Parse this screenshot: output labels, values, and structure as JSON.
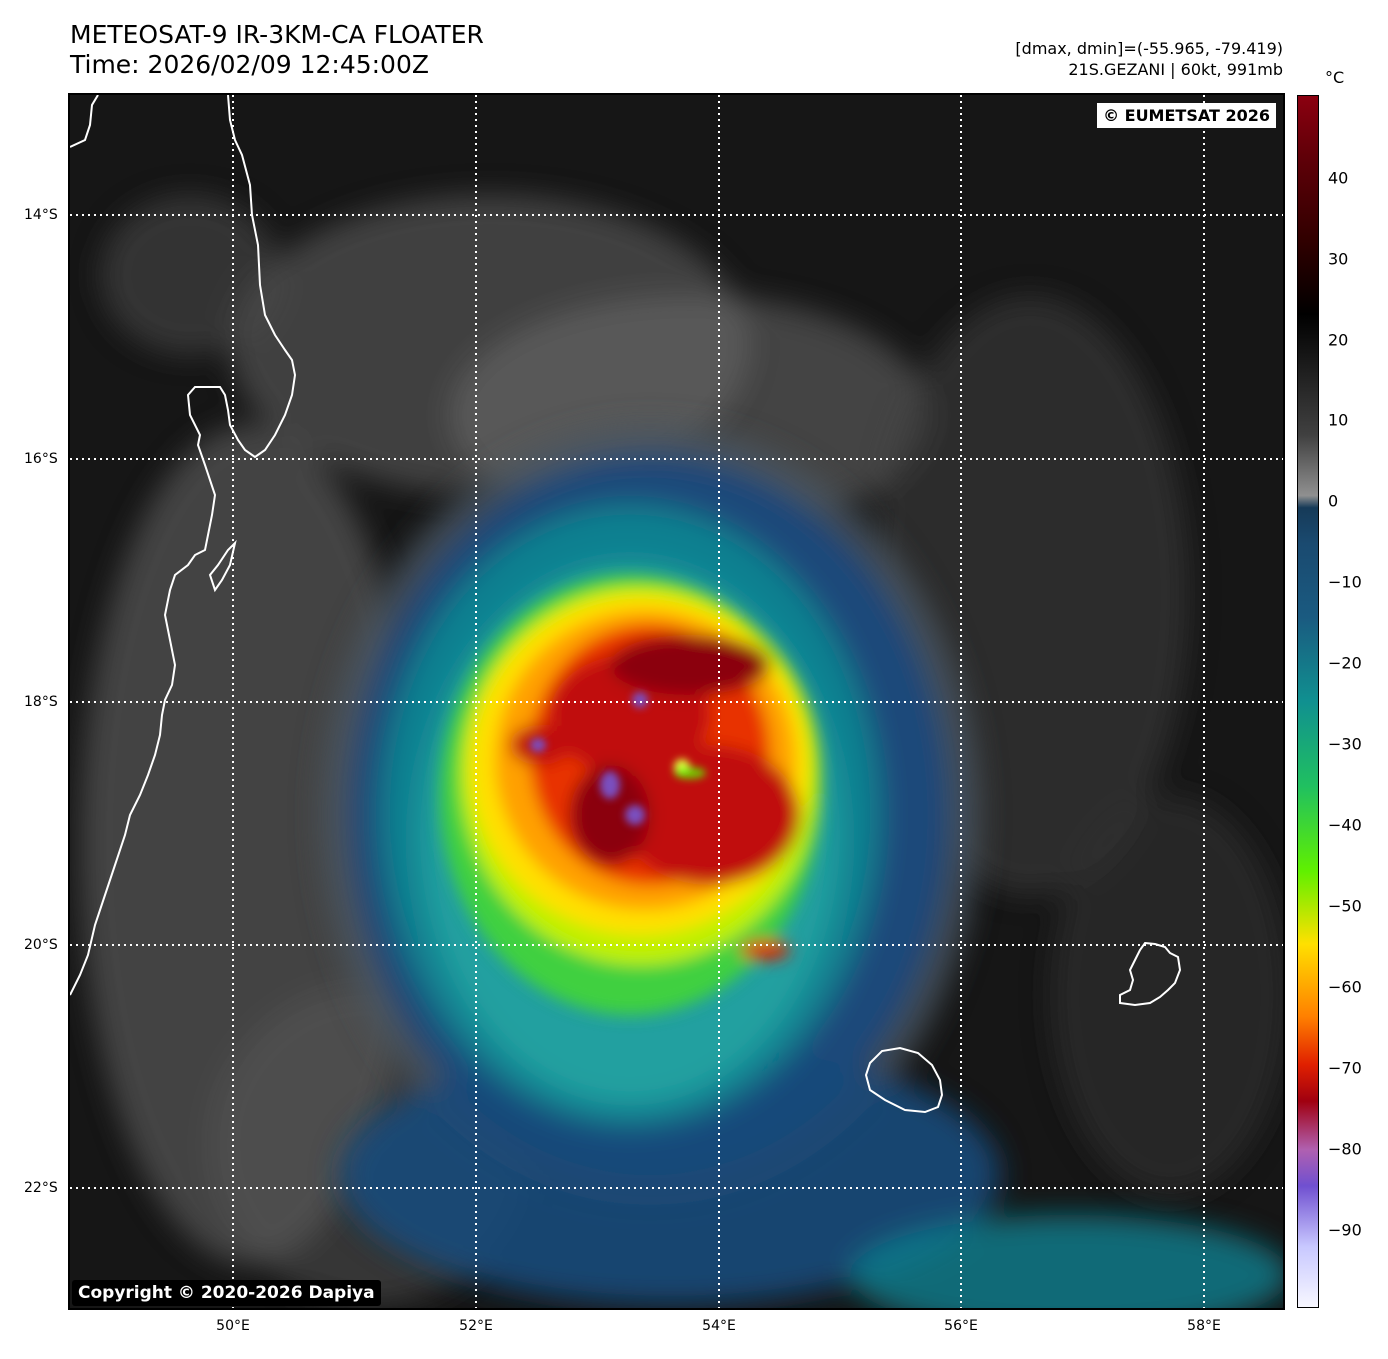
{
  "header": {
    "title_line1": "METEOSAT-9 IR-3KM-CA FLOATER",
    "title_line2": "Time: 2026/02/09 12:45:00Z",
    "range_text": "[dmax, dmin]=(-55.965, -79.419)",
    "storm_text": "21S.GEZANI | 60kt, 991mb"
  },
  "map": {
    "credit_top": "© EUMETSAT 2026",
    "credit_bottom": "Copyright © 2020-2026 Dapiya",
    "lat_labels": [
      "14°S",
      "16°S",
      "18°S",
      "20°S",
      "22°S"
    ],
    "lon_labels": [
      "50°E",
      "52°E",
      "54°E",
      "56°E",
      "58°E"
    ],
    "coastline_color": "#ffffff",
    "gridline_style": "dotted white"
  },
  "colorbar": {
    "unit": "°C",
    "ticks": [
      "40",
      "30",
      "20",
      "10",
      "0",
      "−10",
      "−20",
      "−30",
      "−40",
      "−50",
      "−60",
      "−70",
      "−80",
      "−90"
    ],
    "range": [
      -100,
      50
    ],
    "colors": [
      "#f7f7ff",
      "#c8c8ff",
      "#6a4fd0",
      "#a040a0",
      "#8b0010",
      "#e02000",
      "#ff8000",
      "#ffe000",
      "#60f000",
      "#20c060",
      "#108090",
      "#1a4a7a",
      "#163a58",
      "#808080",
      "#2a2a2a",
      "#000000",
      "#400000",
      "#8b0010"
    ]
  }
}
